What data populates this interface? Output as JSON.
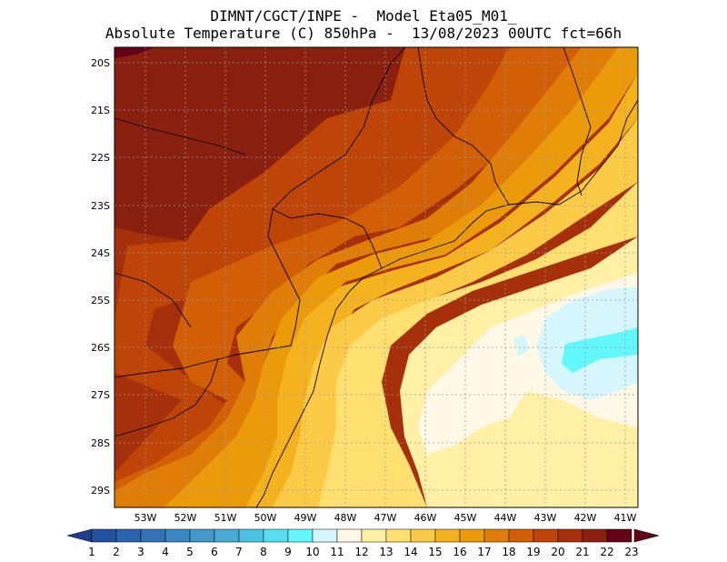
{
  "header": {
    "line1": "DIMNT/CGCT/INPE -  Model Eta05_M01_",
    "line2": "Absolute Temperature (C) 850hPa -  13/08/2023 00UTC fct=66h"
  },
  "axes": {
    "lat_labels": [
      "20S",
      "21S",
      "22S",
      "23S",
      "24S",
      "25S",
      "26S",
      "27S",
      "28S",
      "29S"
    ],
    "lon_labels": [
      "53W",
      "52W",
      "51W",
      "50W",
      "49W",
      "48W",
      "47W",
      "46W",
      "45W",
      "44W",
      "43W",
      "42W",
      "41W"
    ]
  },
  "colorbar": {
    "labels": [
      "1",
      "2",
      "3",
      "4",
      "5",
      "6",
      "7",
      "8",
      "9",
      "10",
      "11",
      "12",
      "13",
      "14",
      "15",
      "16",
      "17",
      "18",
      "19",
      "20",
      "21",
      "22",
      "23"
    ],
    "colors": [
      "#1f3d8f",
      "#23529f",
      "#2a63ad",
      "#3273b8",
      "#3a86c3",
      "#4398cc",
      "#48abd6",
      "#4cc2e2",
      "#55dff0",
      "#62f7fb",
      "#d6f6fd",
      "#fff8e6",
      "#fff0a6",
      "#ffe070",
      "#fbcb47",
      "#f4b21e",
      "#eb9a09",
      "#e07d07",
      "#d25e06",
      "#bf4408",
      "#a6300b",
      "#8a200f",
      "#650217"
    ]
  }
}
